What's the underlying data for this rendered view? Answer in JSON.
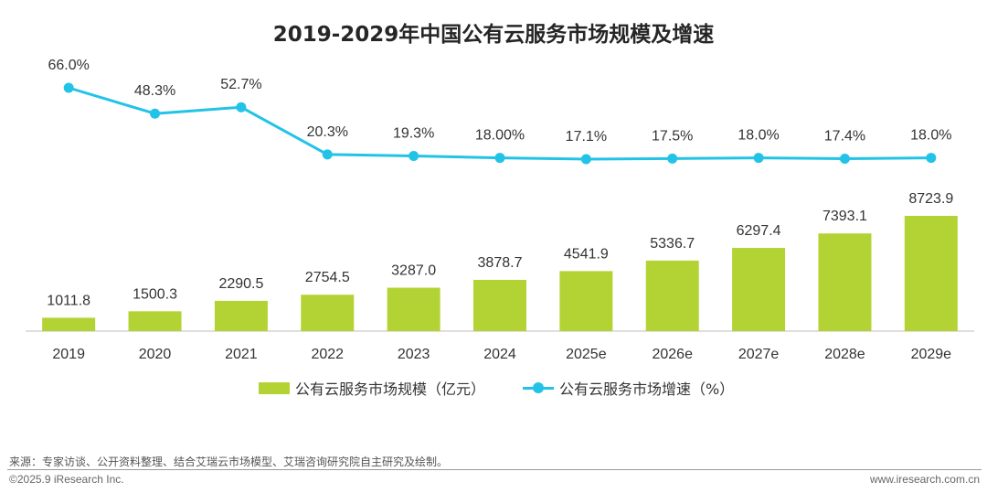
{
  "chart_data": {
    "type": "bar+line",
    "title": "2019-2029年中国公有云服务市场规模及增速",
    "categories": [
      "2019",
      "2020",
      "2021",
      "2022",
      "2023",
      "2024",
      "2025e",
      "2026e",
      "2027e",
      "2028e",
      "2029e"
    ],
    "series": [
      {
        "name": "公有云服务市场规模（亿元）",
        "type": "bar",
        "color": "#b3d335",
        "values": [
          1011.8,
          1500.3,
          2290.5,
          2754.5,
          3287.0,
          3878.7,
          4541.9,
          5336.7,
          6297.4,
          7393.1,
          8723.9
        ],
        "labels": [
          "1011.8",
          "1500.3",
          "2290.5",
          "2754.5",
          "3287.0",
          "3878.7",
          "4541.9",
          "5336.7",
          "6297.4",
          "7393.1",
          "8723.9"
        ]
      },
      {
        "name": "公有云服务市场增速（%）",
        "type": "line",
        "color": "#22c3e6",
        "values": [
          66.0,
          48.3,
          52.7,
          20.3,
          19.3,
          18.0,
          17.1,
          17.5,
          18.0,
          17.4,
          18.0
        ],
        "labels": [
          "66.0%",
          "48.3%",
          "52.7%",
          "20.3%",
          "19.3%",
          "18.00%",
          "17.1%",
          "17.5%",
          "18.0%",
          "17.4%",
          "18.0%"
        ]
      }
    ],
    "legend_position": "bottom"
  },
  "footer": {
    "source": "来源：专家访谈、公开资料整理、结合艾瑞云市场模型、艾瑞咨询研究院自主研究及绘制。",
    "copyright": "©2025.9 iResearch Inc.",
    "website": "www.iresearch.com.cn"
  }
}
